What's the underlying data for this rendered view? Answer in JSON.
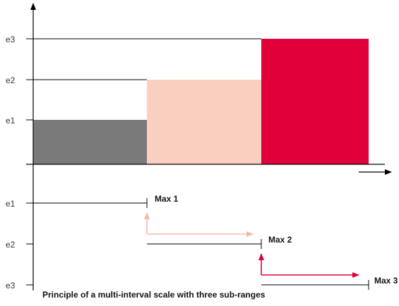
{
  "diagram": {
    "levels": [
      {
        "label": "e1",
        "bar_color": "#7a7a7a",
        "max_label": "Max 1"
      },
      {
        "label": "e2",
        "bar_color": "#f9cfc0",
        "max_label": "Max 2"
      },
      {
        "label": "e3",
        "bar_color": "#e0003a",
        "max_label": "Max 3"
      }
    ],
    "caption": "Principle of a multi-interval scale with three sub-ranges",
    "arrow_colors": [
      "#f7b8a8",
      "#e0003a"
    ]
  }
}
